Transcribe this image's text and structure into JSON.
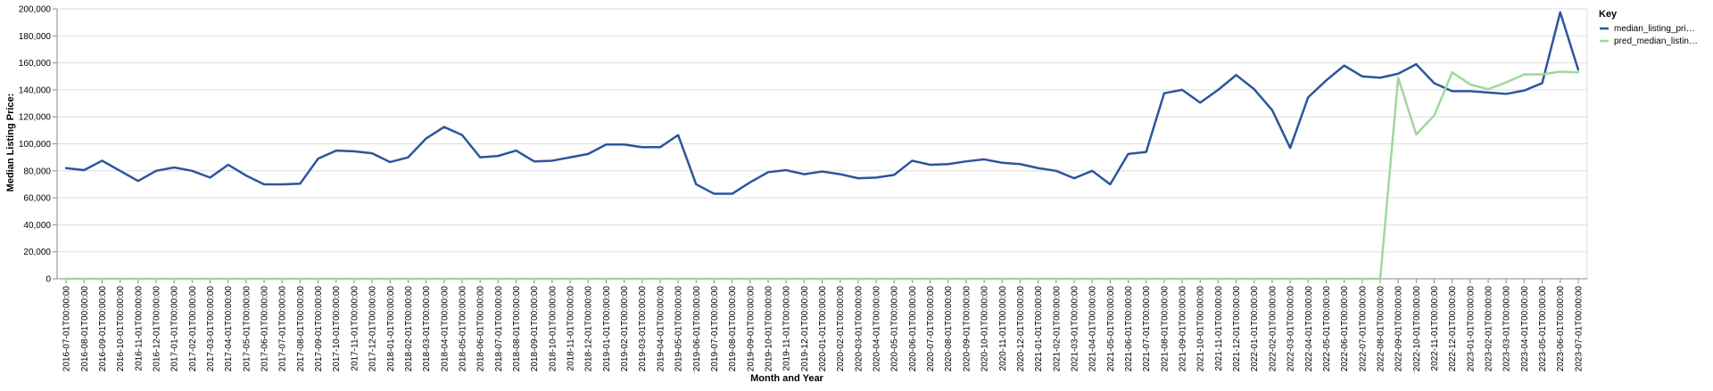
{
  "chart_data": {
    "type": "line",
    "xlabel": "Month and Year",
    "ylabel": "Median Listing Price:",
    "ylim": [
      0,
      200000
    ],
    "yticks": [
      0,
      20000,
      40000,
      60000,
      80000,
      100000,
      120000,
      140000,
      160000,
      180000,
      200000
    ],
    "ytick_labels": [
      "0",
      "20,000",
      "40,000",
      "60,000",
      "80,000",
      "100,000",
      "120,000",
      "140,000",
      "160,000",
      "180,000",
      "200,000"
    ],
    "grid": true,
    "legend": {
      "title": "Key",
      "position": "top-right",
      "entries": [
        "median_listing_pri…",
        "pred_median_listin…"
      ]
    },
    "categories": [
      "2016-07-01T00:00:00",
      "2016-08-01T00:00:00",
      "2016-09-01T00:00:00",
      "2016-10-01T00:00:00",
      "2016-11-01T00:00:00",
      "2016-12-01T00:00:00",
      "2017-01-01T00:00:00",
      "2017-02-01T00:00:00",
      "2017-03-01T00:00:00",
      "2017-04-01T00:00:00",
      "2017-05-01T00:00:00",
      "2017-06-01T00:00:00",
      "2017-07-01T00:00:00",
      "2017-08-01T00:00:00",
      "2017-09-01T00:00:00",
      "2017-10-01T00:00:00",
      "2017-11-01T00:00:00",
      "2017-12-01T00:00:00",
      "2018-01-01T00:00:00",
      "2018-02-01T00:00:00",
      "2018-03-01T00:00:00",
      "2018-04-01T00:00:00",
      "2018-05-01T00:00:00",
      "2018-06-01T00:00:00",
      "2018-07-01T00:00:00",
      "2018-08-01T00:00:00",
      "2018-09-01T00:00:00",
      "2018-10-01T00:00:00",
      "2018-11-01T00:00:00",
      "2018-12-01T00:00:00",
      "2019-01-01T00:00:00",
      "2019-02-01T00:00:00",
      "2019-03-01T00:00:00",
      "2019-04-01T00:00:00",
      "2019-05-01T00:00:00",
      "2019-06-01T00:00:00",
      "2019-07-01T00:00:00",
      "2019-08-01T00:00:00",
      "2019-09-01T00:00:00",
      "2019-10-01T00:00:00",
      "2019-11-01T00:00:00",
      "2019-12-01T00:00:00",
      "2020-01-01T00:00:00",
      "2020-02-01T00:00:00",
      "2020-03-01T00:00:00",
      "2020-04-01T00:00:00",
      "2020-05-01T00:00:00",
      "2020-06-01T00:00:00",
      "2020-07-01T00:00:00",
      "2020-08-01T00:00:00",
      "2020-09-01T00:00:00",
      "2020-10-01T00:00:00",
      "2020-11-01T00:00:00",
      "2020-12-01T00:00:00",
      "2021-01-01T00:00:00",
      "2021-02-01T00:00:00",
      "2021-03-01T00:00:00",
      "2021-04-01T00:00:00",
      "2021-05-01T00:00:00",
      "2021-06-01T00:00:00",
      "2021-07-01T00:00:00",
      "2021-08-01T00:00:00",
      "2021-09-01T00:00:00",
      "2021-10-01T00:00:00",
      "2021-11-01T00:00:00",
      "2021-12-01T00:00:00",
      "2022-01-01T00:00:00",
      "2022-02-01T00:00:00",
      "2022-03-01T00:00:00",
      "2022-04-01T00:00:00",
      "2022-05-01T00:00:00",
      "2022-06-01T00:00:00",
      "2022-07-01T00:00:00",
      "2022-08-01T00:00:00",
      "2022-09-01T00:00:00",
      "2022-10-01T00:00:00",
      "2022-11-01T00:00:00",
      "2022-12-01T00:00:00",
      "2023-01-01T00:00:00",
      "2023-02-01T00:00:00",
      "2023-03-01T00:00:00",
      "2023-04-01T00:00:00",
      "2023-05-01T00:00:00",
      "2023-06-01T00:00:00",
      "2023-07-01T00:00:00"
    ],
    "series": [
      {
        "name": "median_listing_pri…",
        "color": "#2c559c",
        "values": [
          82000,
          80500,
          87500,
          80000,
          72500,
          80000,
          82500,
          80000,
          75000,
          84500,
          76500,
          70000,
          70000,
          70500,
          89000,
          95000,
          94500,
          93000,
          86500,
          90000,
          104000,
          112500,
          106500,
          90000,
          91000,
          95000,
          87000,
          87500,
          90000,
          92500,
          99500,
          99500,
          97500,
          97500,
          106500,
          70000,
          63000,
          63000,
          71500,
          79000,
          80500,
          77500,
          79500,
          77500,
          74500,
          75000,
          77000,
          87500,
          84500,
          85000,
          87000,
          88500,
          86000,
          85000,
          82000,
          80000,
          74500,
          80000,
          70000,
          92500,
          94000,
          137500,
          140000,
          130500,
          140000,
          151000,
          140500,
          125000,
          97000,
          134500,
          147000,
          158000,
          150000,
          149000,
          152000,
          159000,
          145000,
          139000,
          139000,
          138000,
          137000,
          139500,
          145000,
          197500,
          155000
        ]
      },
      {
        "name": "pred_median_listin…",
        "color": "#9fd89b",
        "values": [
          0,
          0,
          0,
          0,
          0,
          0,
          0,
          0,
          0,
          0,
          0,
          0,
          0,
          0,
          0,
          0,
          0,
          0,
          0,
          0,
          0,
          0,
          0,
          0,
          0,
          0,
          0,
          0,
          0,
          0,
          0,
          0,
          0,
          0,
          0,
          0,
          0,
          0,
          0,
          0,
          0,
          0,
          0,
          0,
          0,
          0,
          0,
          0,
          0,
          0,
          0,
          0,
          0,
          0,
          0,
          0,
          0,
          0,
          0,
          0,
          0,
          0,
          0,
          0,
          0,
          0,
          0,
          0,
          0,
          0,
          0,
          0,
          0,
          0,
          149000,
          107000,
          121000,
          153000,
          144000,
          140500,
          145500,
          151500,
          151500,
          153500,
          153000
        ]
      }
    ]
  }
}
